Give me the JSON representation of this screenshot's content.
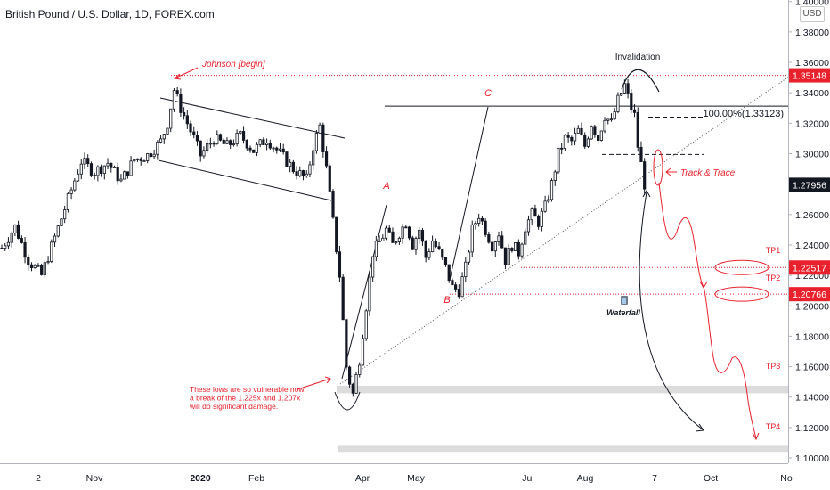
{
  "title": "British Pound / U.S. Dollar, 1D, FOREX.com",
  "currency_badge": "USD",
  "colors": {
    "candle": "#131722",
    "annotation": "#e8212c",
    "neutral": "#131722",
    "highlight_band": "#dcdcdc",
    "price_tag": "#e8212c",
    "last_price_tag": "#131722"
  },
  "chart_data": {
    "type": "candlestick",
    "y_axis_ticks": [
      "1.40000",
      "1.38000",
      "1.36000",
      "1.34000",
      "1.32000",
      "1.30000",
      "1.28000",
      "1.26000",
      "1.24000",
      "1.22000",
      "1.20000",
      "1.18000",
      "1.16000",
      "1.14000",
      "1.12000",
      "1.10000"
    ],
    "ylim": [
      1.0965,
      1.401
    ],
    "x_axis_ticks": [
      "2",
      "Nov",
      "2020",
      "Feb",
      "Apr",
      "May",
      "Jul",
      "Aug",
      "7",
      "Oct",
      "No"
    ],
    "price_tags": [
      {
        "value": 1.35148,
        "label": "1.35148",
        "style": "red"
      },
      {
        "value": 1.27956,
        "label": "1.27956",
        "style": "dark"
      },
      {
        "value": 1.22517,
        "label": "1.22517",
        "style": "red"
      },
      {
        "value": 1.20766,
        "label": "1.20766",
        "style": "red"
      }
    ],
    "fib_label": "100.00%(1.33123)",
    "annotations": {
      "johnson": "Johnson [begin]",
      "invalidation": "Invalidation",
      "track_trace": "Track & Trace",
      "wave_a": "A",
      "wave_b": "B",
      "wave_c": "C",
      "tp1": "TP1",
      "tp2": "TP2",
      "tp3": "TP3",
      "tp4": "TP4",
      "waterfall": "Waterfall",
      "lows_note": [
        "These lows are so vulnerable now;",
        "a break of the 1.225x and 1.207x",
        "will do significant damage."
      ]
    },
    "levels": {
      "johnson_line": 1.35148,
      "c_line": 1.33123,
      "tp1": 1.22517,
      "tp2": 1.20766,
      "dash_upper": 1.324,
      "dash_lower": 1.2995,
      "tp3_band": [
        1.1425,
        1.1475
      ],
      "tp4_band": [
        1.104,
        1.108
      ]
    },
    "path_keypoints": [
      [
        0,
        1.238
      ],
      [
        4,
        1.252
      ],
      [
        8,
        1.23
      ],
      [
        12,
        1.22
      ],
      [
        16,
        1.245
      ],
      [
        20,
        1.27
      ],
      [
        24,
        1.295
      ],
      [
        28,
        1.288
      ],
      [
        32,
        1.294
      ],
      [
        36,
        1.282
      ],
      [
        40,
        1.296
      ],
      [
        44,
        1.299
      ],
      [
        48,
        1.308
      ],
      [
        50,
        1.32
      ],
      [
        52,
        1.342
      ],
      [
        54,
        1.33
      ],
      [
        58,
        1.31
      ],
      [
        60,
        1.299
      ],
      [
        64,
        1.31
      ],
      [
        68,
        1.305
      ],
      [
        72,
        1.312
      ],
      [
        76,
        1.302
      ],
      [
        80,
        1.31
      ],
      [
        84,
        1.3
      ],
      [
        88,
        1.29
      ],
      [
        92,
        1.283
      ],
      [
        94,
        1.305
      ],
      [
        96,
        1.318
      ],
      [
        98,
        1.29
      ],
      [
        100,
        1.255
      ],
      [
        102,
        1.22
      ],
      [
        104,
        1.16
      ],
      [
        105,
        1.15
      ],
      [
        106,
        1.142
      ],
      [
        108,
        1.165
      ],
      [
        110,
        1.2
      ],
      [
        112,
        1.235
      ],
      [
        114,
        1.242
      ],
      [
        116,
        1.25
      ],
      [
        118,
        1.24
      ],
      [
        120,
        1.248
      ],
      [
        122,
        1.255
      ],
      [
        124,
        1.24
      ],
      [
        126,
        1.25
      ],
      [
        128,
        1.232
      ],
      [
        130,
        1.243
      ],
      [
        132,
        1.235
      ],
      [
        134,
        1.225
      ],
      [
        136,
        1.212
      ],
      [
        138,
        1.21
      ],
      [
        140,
        1.225
      ],
      [
        142,
        1.25
      ],
      [
        144,
        1.26
      ],
      [
        146,
        1.25
      ],
      [
        148,
        1.24
      ],
      [
        150,
        1.248
      ],
      [
        152,
        1.23
      ],
      [
        154,
        1.24
      ],
      [
        156,
        1.235
      ],
      [
        158,
        1.252
      ],
      [
        160,
        1.26
      ],
      [
        162,
        1.255
      ],
      [
        164,
        1.265
      ],
      [
        166,
        1.28
      ],
      [
        168,
        1.3
      ],
      [
        170,
        1.31
      ],
      [
        172,
        1.308
      ],
      [
        174,
        1.315
      ],
      [
        176,
        1.305
      ],
      [
        178,
        1.32
      ],
      [
        180,
        1.31
      ],
      [
        182,
        1.325
      ],
      [
        184,
        1.32
      ],
      [
        186,
        1.335
      ],
      [
        188,
        1.345
      ],
      [
        190,
        1.33
      ],
      [
        191,
        1.325
      ],
      [
        192,
        1.305
      ],
      [
        193,
        1.293
      ],
      [
        194,
        1.28
      ]
    ]
  }
}
